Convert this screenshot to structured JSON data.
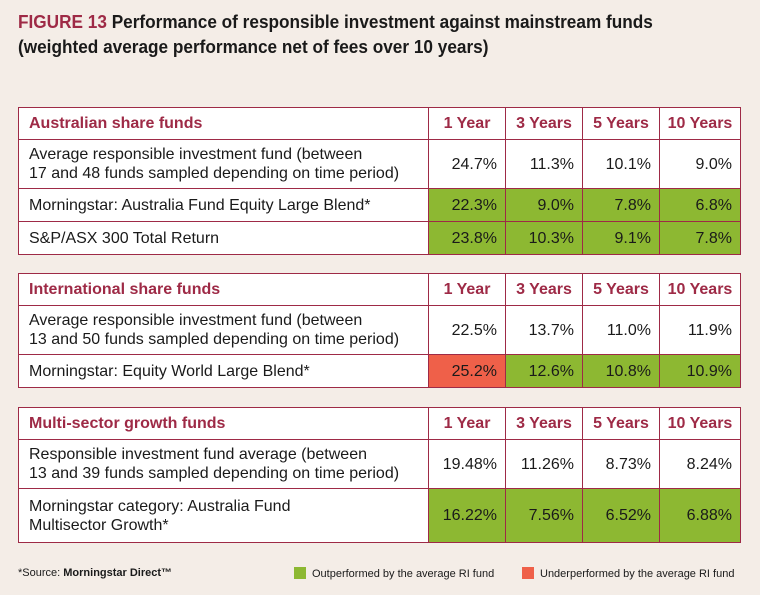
{
  "figure": {
    "label": "FIGURE 13",
    "title_line1": "Performance of responsible investment against mainstream funds",
    "title_line2": "(weighted average performance net of fees over 10 years)"
  },
  "columns": [
    "1 Year",
    "3 Years",
    "5 Years",
    "10 Years"
  ],
  "tables": [
    {
      "heading": "Australian share funds",
      "rows": [
        {
          "label_line1": "Average responsible investment fund (between",
          "label_line2": "17 and 48 funds sampled depending on time period)",
          "values": [
            "24.7%",
            "11.3%",
            "10.1%",
            "9.0%"
          ],
          "status": [
            "",
            "",
            "",
            ""
          ]
        },
        {
          "label_line1": "Morningstar: Australia Fund Equity Large Blend*",
          "label_line2": "",
          "values": [
            "22.3%",
            "9.0%",
            "7.8%",
            "6.8%"
          ],
          "status": [
            "outperformed",
            "outperformed",
            "outperformed",
            "outperformed"
          ]
        },
        {
          "label_line1": "S&P/ASX 300 Total Return",
          "label_line2": "",
          "values": [
            "23.8%",
            "10.3%",
            "9.1%",
            "7.8%"
          ],
          "status": [
            "outperformed",
            "outperformed",
            "outperformed",
            "outperformed"
          ]
        }
      ]
    },
    {
      "heading": "International share funds",
      "rows": [
        {
          "label_line1": "Average responsible investment fund (between",
          "label_line2": "13 and 50 funds sampled depending on time period)",
          "values": [
            "22.5%",
            "13.7%",
            "11.0%",
            "11.9%"
          ],
          "status": [
            "",
            "",
            "",
            ""
          ]
        },
        {
          "label_line1": "Morningstar: Equity World Large Blend*",
          "label_line2": "",
          "values": [
            "25.2%",
            "12.6%",
            "10.8%",
            "10.9%"
          ],
          "status": [
            "underperformed",
            "outperformed",
            "outperformed",
            "outperformed"
          ]
        }
      ]
    },
    {
      "heading": "Multi-sector growth funds",
      "rows": [
        {
          "label_line1": "Responsible investment fund average (between",
          "label_line2": "13 and 39 funds sampled depending on time period)",
          "values": [
            "19.48%",
            "11.26%",
            "8.73%",
            "8.24%"
          ],
          "status": [
            "",
            "",
            "",
            ""
          ]
        },
        {
          "label_line1": "Morningstar category: Australia Fund",
          "label_line2": "Multisector Growth*",
          "values": [
            "16.22%",
            "7.56%",
            "6.52%",
            "6.88%"
          ],
          "status": [
            "outperformed",
            "outperformed",
            "outperformed",
            "outperformed"
          ]
        }
      ]
    }
  ],
  "footer": {
    "source_prefix": "*Source: ",
    "source_name": "Morningstar Direct™",
    "legend_outperformed": "Outperformed by the average RI fund",
    "legend_underperformed": "Underperformed by the average RI fund"
  },
  "colors": {
    "accent": "#9e2a46",
    "outperformed": "#8db832",
    "underperformed": "#ef6049",
    "background": "#f4ede7"
  }
}
